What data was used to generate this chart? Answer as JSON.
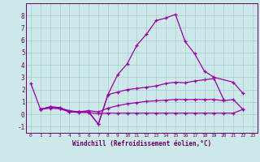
{
  "xlabel": "Windchill (Refroidissement éolien,°C)",
  "x": [
    0,
    1,
    2,
    3,
    4,
    5,
    6,
    7,
    8,
    9,
    10,
    11,
    12,
    13,
    14,
    15,
    16,
    17,
    18,
    19,
    20,
    21,
    22,
    23
  ],
  "line1": [
    2.5,
    0.4,
    0.6,
    0.55,
    0.2,
    0.2,
    0.2,
    -0.8,
    1.6,
    3.2,
    4.1,
    5.6,
    6.5,
    7.6,
    7.8,
    8.1,
    5.9,
    4.9,
    3.5,
    3.0,
    null,
    2.6,
    1.7,
    null
  ],
  "line2": [
    null,
    0.4,
    0.6,
    0.55,
    0.2,
    0.2,
    0.2,
    -0.8,
    1.6,
    1.8,
    2.0,
    2.1,
    2.2,
    2.3,
    2.5,
    2.6,
    2.55,
    2.7,
    2.8,
    2.9,
    1.2,
    null,
    null,
    null
  ],
  "line3": [
    null,
    0.4,
    0.6,
    0.5,
    0.3,
    0.2,
    0.3,
    0.2,
    0.5,
    0.7,
    0.85,
    0.95,
    1.05,
    1.1,
    1.15,
    1.2,
    1.2,
    1.2,
    1.2,
    1.2,
    1.1,
    1.2,
    0.4,
    null
  ],
  "line4": [
    null,
    0.4,
    0.5,
    0.45,
    0.2,
    0.15,
    0.15,
    0.05,
    0.1,
    0.1,
    0.1,
    0.1,
    0.1,
    0.1,
    0.1,
    0.1,
    0.1,
    0.1,
    0.1,
    0.1,
    0.1,
    0.1,
    0.4,
    null
  ],
  "line_color": "#9900aa",
  "bg_color": "#cce8e8",
  "grid_color": "#aacccc",
  "axis_color": "#660066",
  "ylim": [
    -1.5,
    9.0
  ],
  "xlim": [
    -0.5,
    23.5
  ],
  "yticks": [
    -1,
    0,
    1,
    2,
    3,
    4,
    5,
    6,
    7,
    8
  ],
  "xticks": [
    0,
    1,
    2,
    3,
    4,
    5,
    6,
    7,
    8,
    9,
    10,
    11,
    12,
    13,
    14,
    15,
    16,
    17,
    18,
    19,
    20,
    21,
    22,
    23
  ],
  "marker": "+",
  "markersize": 3.5,
  "linewidth": 0.9
}
